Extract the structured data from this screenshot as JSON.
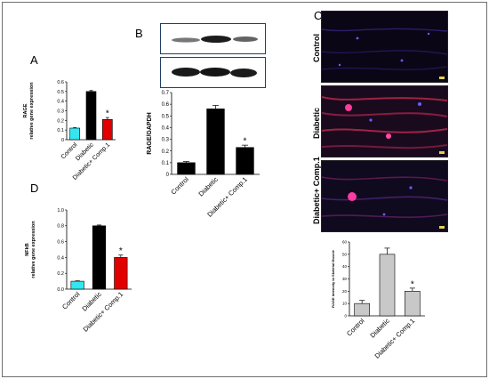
{
  "figure": {
    "panel_labels": {
      "a": "A",
      "b": "B",
      "c": "C",
      "d": "D"
    },
    "micro_labels": [
      "Control",
      "Diabetic",
      "Diabetic+ Comp.1"
    ]
  },
  "chart_data": [
    {
      "id": "A",
      "type": "bar",
      "categories": [
        "Control",
        "Diabetic",
        "Diabetic+ Comp.1"
      ],
      "values": [
        0.12,
        0.5,
        0.21
      ],
      "errors": [
        0.005,
        0.01,
        0.02
      ],
      "colors": [
        "#33e6f0",
        "#000000",
        "#e00000"
      ],
      "ylabel": [
        "RAGE",
        "relative gene expression"
      ],
      "ylim": [
        0,
        0.6
      ],
      "yticks": [
        "0",
        "0.1",
        "0.2",
        "0.3",
        "0.4",
        "0.5",
        "0.6"
      ],
      "annotations": [
        {
          "category": "Diabetic+ Comp.1",
          "text": "*"
        }
      ]
    },
    {
      "id": "B",
      "type": "bar",
      "categories": [
        "Control",
        "Diabetic",
        "Diabetic+ Comp.1"
      ],
      "values": [
        0.1,
        0.56,
        0.23
      ],
      "errors": [
        0.01,
        0.03,
        0.02
      ],
      "colors": [
        "#000000",
        "#000000",
        "#000000"
      ],
      "ylabel": [
        "RAGE/GAPDH"
      ],
      "ylim": [
        0,
        0.7
      ],
      "yticks": [
        "0",
        "0.1",
        "0.2",
        "0.3",
        "0.4",
        "0.5",
        "0.6",
        "0.7"
      ],
      "annotations": [
        {
          "category": "Diabetic+ Comp.1",
          "text": "*"
        }
      ]
    },
    {
      "id": "C",
      "type": "bar",
      "categories": [
        "Control",
        "Diabetic",
        "Diabetic+ Comp.1"
      ],
      "values": [
        10,
        50,
        20
      ],
      "errors": [
        2.5,
        5,
        2.5
      ],
      "colors": [
        "#c8c8c8",
        "#c8c8c8",
        "#c8c8c8"
      ],
      "ylabel": [
        "RAGE Intensity in Skeletal Muscle"
      ],
      "ylim": [
        0,
        60
      ],
      "yticks": [
        "0",
        "10",
        "20",
        "30",
        "40",
        "50",
        "60"
      ],
      "annotations": [
        {
          "category": "Diabetic+ Comp.1",
          "text": "*"
        }
      ]
    },
    {
      "id": "D",
      "type": "bar",
      "categories": [
        "Control",
        "Diabetic",
        "Diabetic+ Comp.1"
      ],
      "values": [
        0.1,
        0.8,
        0.4
      ],
      "errors": [
        0.005,
        0.01,
        0.03
      ],
      "colors": [
        "#33e6f0",
        "#000000",
        "#e00000"
      ],
      "ylabel": [
        "NFkB",
        "relative gene expression"
      ],
      "ylim": [
        0,
        1.0
      ],
      "yticks": [
        "0.0",
        "0.2",
        "0.4",
        "0.6",
        "0.8",
        "1.0"
      ],
      "annotations": [
        {
          "category": "Diabetic+ Comp.1",
          "text": "*"
        }
      ]
    }
  ]
}
